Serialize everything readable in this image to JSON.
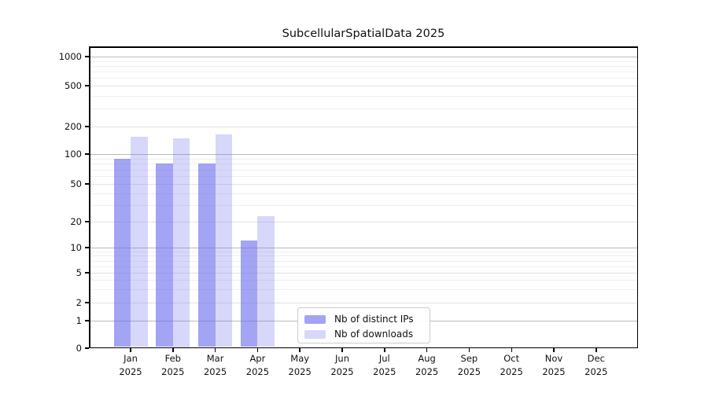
{
  "chart_data": {
    "type": "bar",
    "title": "SubcellularSpatialData 2025",
    "categories": [
      "Jan 2025",
      "Feb 2025",
      "Mar 2025",
      "Apr 2025",
      "May 2025",
      "Jun 2025",
      "Jul 2025",
      "Aug 2025",
      "Sep 2025",
      "Oct 2025",
      "Nov 2025",
      "Dec 2025"
    ],
    "series": [
      {
        "name": "Nb of distinct IPs",
        "color": "rgba(108,108,238,0.62)",
        "values": [
          90,
          80,
          80,
          12,
          0,
          0,
          0,
          0,
          0,
          0,
          0,
          0
        ]
      },
      {
        "name": "Nb of downloads",
        "color": "rgba(108,108,238,0.27)",
        "values": [
          155,
          150,
          165,
          23,
          0,
          0,
          0,
          0,
          0,
          0,
          0,
          0
        ]
      }
    ],
    "yscale": "symlog",
    "yticks": [
      0,
      1,
      2,
      5,
      10,
      20,
      50,
      100,
      200,
      500,
      1000
    ],
    "minor_yticks": [
      3,
      4,
      6,
      7,
      8,
      9,
      30,
      40,
      60,
      70,
      80,
      90,
      300,
      400,
      600,
      700,
      800,
      900
    ],
    "xlabel": "",
    "ylabel": "",
    "grid": true,
    "legend_position": "lower center"
  },
  "colors": {
    "ips_bar": "rgba(108,108,238,0.62)",
    "downloads_bar": "rgba(108,108,238,0.27)",
    "grid_major": "#bababa",
    "grid_mid": "#e2e2e2",
    "grid_minor": "#efefef",
    "axis": "#000000"
  }
}
